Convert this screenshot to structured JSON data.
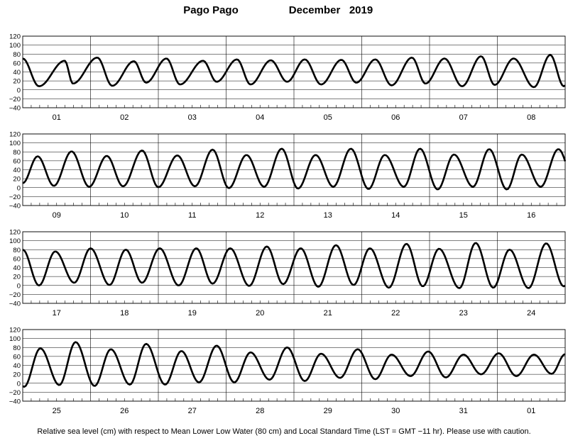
{
  "header": {
    "location": "Pago Pago",
    "month_year": "December   2019"
  },
  "footer": {
    "caption": "Relative sea level (cm) with respect to Mean Lower Low Water (80 cm) and Local Standard Time (LST = GMT −11 hr). Please use with caution."
  },
  "chart_data": {
    "type": "line",
    "title": "Pago Pago          December   2019",
    "ylabel": "",
    "xlabel": "",
    "ylim": [
      -40,
      120
    ],
    "yticks": [
      -40,
      -20,
      0,
      20,
      40,
      60,
      80,
      100,
      120
    ],
    "ytick_labels": [
      "−40",
      "−20",
      "0",
      "20",
      "40",
      "60",
      "80",
      "100",
      "120"
    ],
    "grid": true,
    "units": "cm",
    "panels": [
      {
        "days": [
          "01",
          "02",
          "03",
          "04",
          "05",
          "06",
          "07",
          "08"
        ],
        "highs": [
          [
            0.0,
            70
          ],
          [
            0.62,
            65
          ],
          [
            1.1,
            72
          ],
          [
            1.64,
            64
          ],
          [
            2.12,
            70
          ],
          [
            2.66,
            65
          ],
          [
            3.16,
            68
          ],
          [
            3.66,
            66
          ],
          [
            4.16,
            68
          ],
          [
            4.7,
            67
          ],
          [
            5.2,
            68
          ],
          [
            5.74,
            72
          ],
          [
            6.22,
            70
          ],
          [
            6.76,
            75
          ],
          [
            7.24,
            70
          ],
          [
            7.78,
            78
          ]
        ],
        "lows": [
          [
            0.24,
            8
          ],
          [
            0.74,
            14
          ],
          [
            1.32,
            9
          ],
          [
            1.82,
            16
          ],
          [
            2.32,
            12
          ],
          [
            2.86,
            18
          ],
          [
            3.36,
            12
          ],
          [
            3.9,
            18
          ],
          [
            4.4,
            12
          ],
          [
            4.92,
            16
          ],
          [
            5.44,
            10
          ],
          [
            5.94,
            14
          ],
          [
            6.48,
            8
          ],
          [
            6.96,
            11
          ],
          [
            7.54,
            6
          ],
          [
            7.98,
            8
          ]
        ]
      },
      {
        "days": [
          "09",
          "10",
          "11",
          "12",
          "13",
          "14",
          "15",
          "16"
        ],
        "highs": [
          [
            0.22,
            70
          ],
          [
            0.72,
            81
          ],
          [
            1.24,
            71
          ],
          [
            1.76,
            83
          ],
          [
            2.28,
            72
          ],
          [
            2.8,
            85
          ],
          [
            3.3,
            73
          ],
          [
            3.82,
            87
          ],
          [
            4.32,
            73
          ],
          [
            4.84,
            87
          ],
          [
            5.34,
            73
          ],
          [
            5.86,
            87
          ],
          [
            6.36,
            74
          ],
          [
            6.88,
            86
          ],
          [
            7.36,
            74
          ],
          [
            7.9,
            86
          ]
        ],
        "lows": [
          [
            0.0,
            10
          ],
          [
            0.46,
            4
          ],
          [
            0.98,
            2
          ],
          [
            1.48,
            3
          ],
          [
            2.0,
            1
          ],
          [
            2.54,
            3
          ],
          [
            3.04,
            -1
          ],
          [
            3.56,
            2
          ],
          [
            4.06,
            -2
          ],
          [
            4.58,
            2
          ],
          [
            5.1,
            -3
          ],
          [
            5.62,
            2
          ],
          [
            6.12,
            -4
          ],
          [
            6.64,
            2
          ],
          [
            7.14,
            -4
          ],
          [
            7.64,
            2
          ]
        ]
      },
      {
        "days": [
          "17",
          "18",
          "19",
          "20",
          "21",
          "22",
          "23",
          "24"
        ],
        "highs": [
          [
            0.0,
            80
          ],
          [
            0.48,
            76
          ],
          [
            1.0,
            83
          ],
          [
            1.52,
            80
          ],
          [
            2.02,
            83
          ],
          [
            2.56,
            83
          ],
          [
            3.06,
            83
          ],
          [
            3.6,
            87
          ],
          [
            4.1,
            83
          ],
          [
            4.62,
            90
          ],
          [
            5.12,
            83
          ],
          [
            5.66,
            93
          ],
          [
            6.14,
            82
          ],
          [
            6.68,
            95
          ],
          [
            7.18,
            80
          ],
          [
            7.72,
            94
          ]
        ],
        "lows": [
          [
            0.24,
            0
          ],
          [
            0.76,
            6
          ],
          [
            1.28,
            1
          ],
          [
            1.76,
            6
          ],
          [
            2.3,
            0
          ],
          [
            2.8,
            4
          ],
          [
            3.34,
            -1
          ],
          [
            3.84,
            3
          ],
          [
            4.36,
            -3
          ],
          [
            4.88,
            1
          ],
          [
            5.4,
            -5
          ],
          [
            5.9,
            -2
          ],
          [
            6.44,
            -6
          ],
          [
            6.94,
            -5
          ],
          [
            7.46,
            -6
          ],
          [
            7.98,
            -2
          ]
        ]
      },
      {
        "days": [
          "25",
          "26",
          "27",
          "28",
          "29",
          "30",
          "31",
          "01"
        ],
        "highs": [
          [
            0.26,
            78
          ],
          [
            0.78,
            92
          ],
          [
            1.3,
            76
          ],
          [
            1.82,
            88
          ],
          [
            2.34,
            72
          ],
          [
            2.86,
            84
          ],
          [
            3.36,
            69
          ],
          [
            3.9,
            80
          ],
          [
            4.4,
            66
          ],
          [
            4.94,
            76
          ],
          [
            5.44,
            64
          ],
          [
            5.98,
            71
          ],
          [
            6.5,
            64
          ],
          [
            7.02,
            67
          ],
          [
            7.54,
            64
          ],
          [
            8.0,
            65
          ]
        ],
        "lows": [
          [
            0.02,
            -8
          ],
          [
            0.54,
            -4
          ],
          [
            1.06,
            -6
          ],
          [
            1.58,
            -3
          ],
          [
            2.1,
            -3
          ],
          [
            2.6,
            2
          ],
          [
            3.12,
            2
          ],
          [
            3.64,
            8
          ],
          [
            4.16,
            5
          ],
          [
            4.68,
            12
          ],
          [
            5.2,
            9
          ],
          [
            5.72,
            16
          ],
          [
            6.24,
            13
          ],
          [
            6.76,
            20
          ],
          [
            7.28,
            16
          ],
          [
            7.8,
            21
          ]
        ]
      }
    ]
  }
}
